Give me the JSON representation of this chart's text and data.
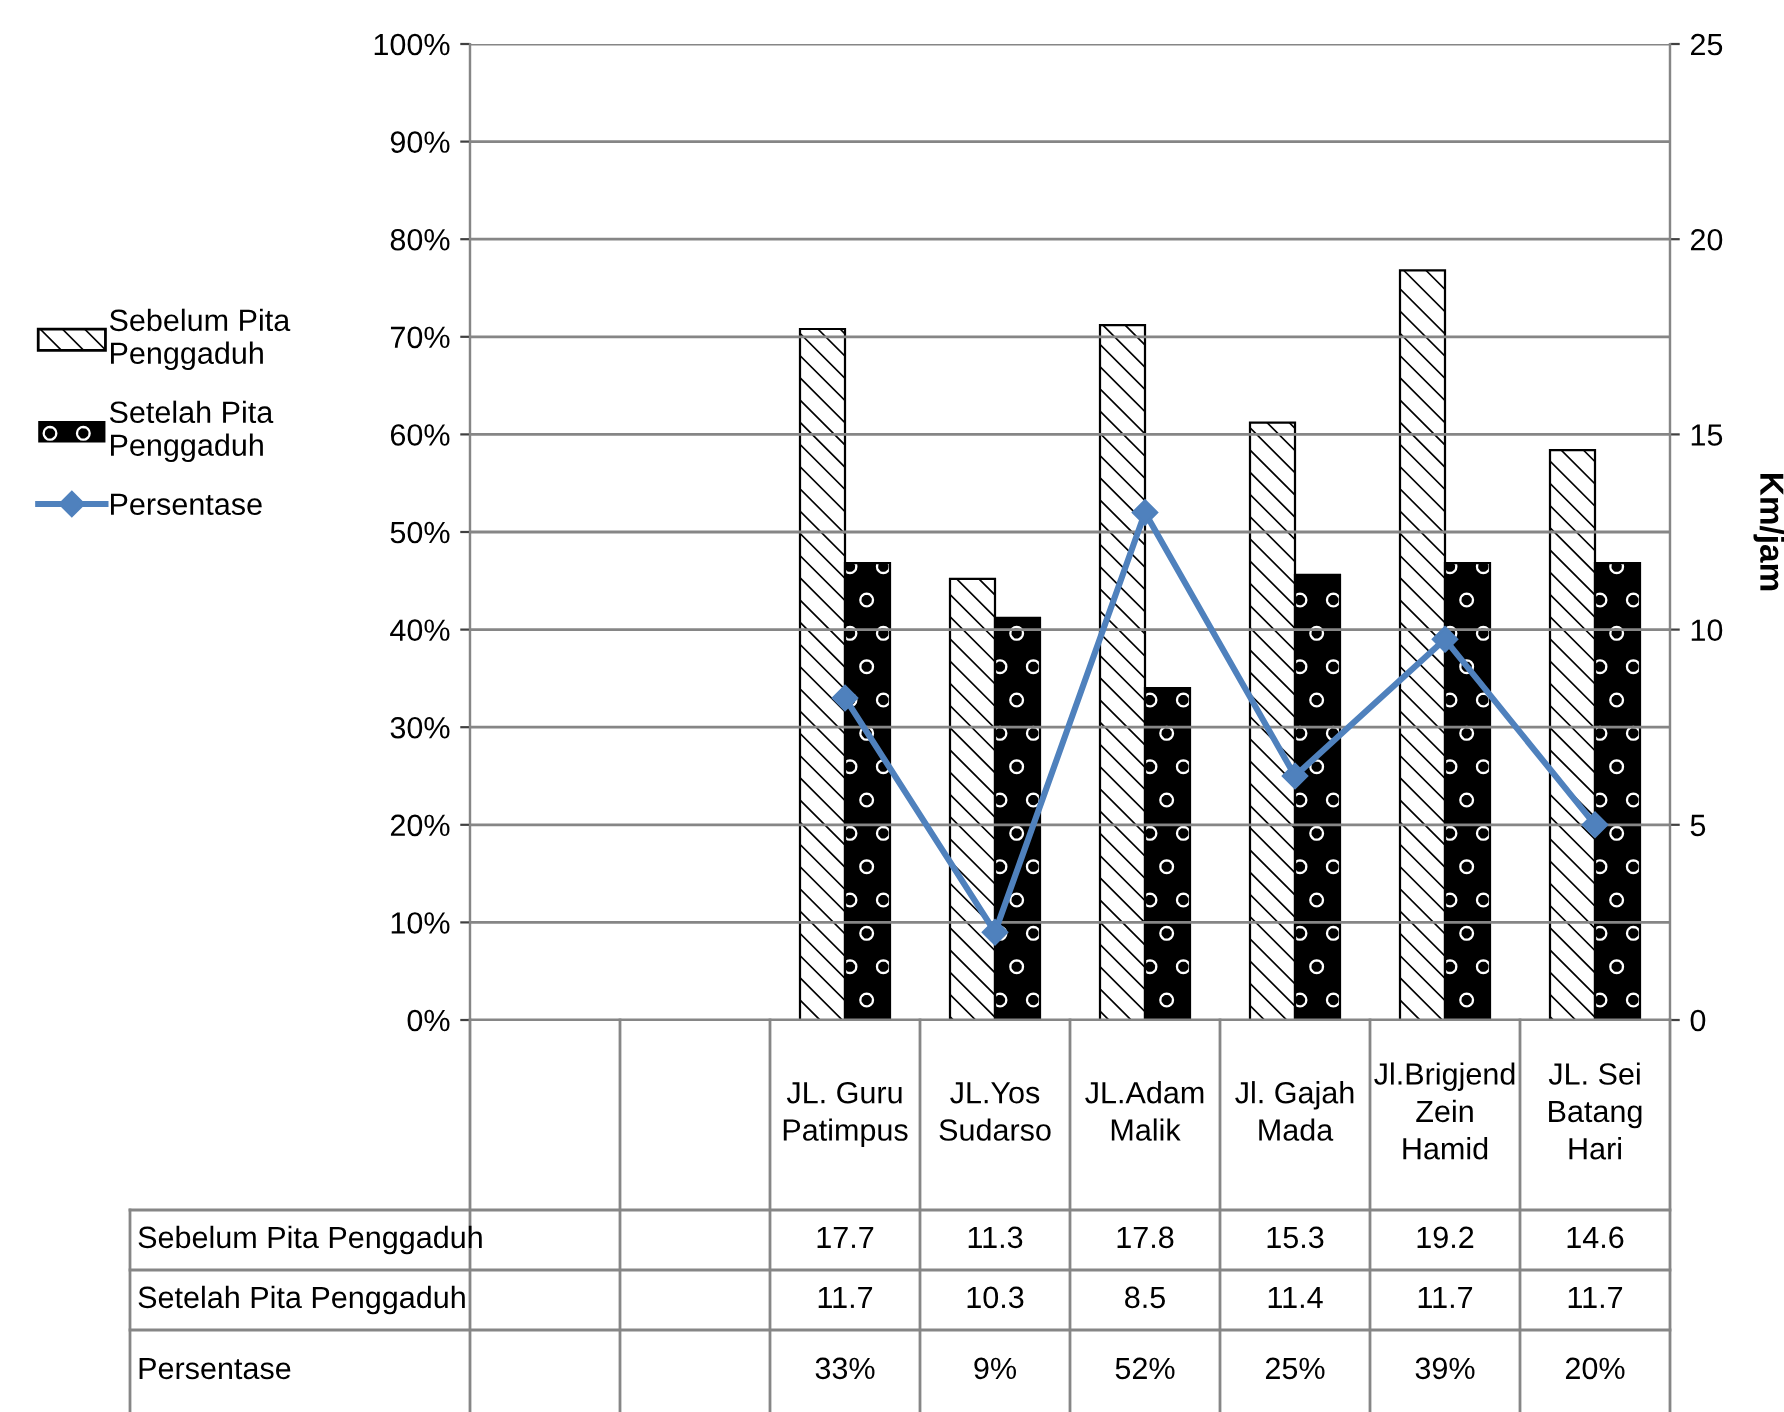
{
  "chart_data": {
    "type": "bar",
    "y2label": "Km/jam",
    "categories": [
      null,
      null,
      "JL. Guru Patimpus",
      "JL.Yos Sudarso",
      "JL.Adam Malik",
      "Jl. Gajah Mada",
      "Jl.Brigjend Zein Hamid",
      "JL. Sei Batang Hari"
    ],
    "series": [
      {
        "name": "Sebelum Pita Penggaduh",
        "axis": "y2",
        "color": "#ffffff",
        "values": [
          null,
          null,
          17.7,
          11.3,
          17.8,
          15.3,
          19.2,
          14.6
        ],
        "value_labels": [
          null,
          null,
          "17.7",
          "11.3",
          "17.8",
          "15.3",
          "19.2",
          "14.6"
        ]
      },
      {
        "name": "Setelah Pita Penggaduh",
        "axis": "y2",
        "color": "#000000",
        "values": [
          null,
          null,
          11.7,
          10.3,
          8.5,
          11.4,
          11.7,
          11.7
        ],
        "value_labels": [
          null,
          null,
          "11.7",
          "10.3",
          "8.5",
          "11.4",
          "11.7",
          "11.7"
        ]
      },
      {
        "name": "Persentase",
        "type": "line",
        "axis": "y",
        "color": "#4f81bd",
        "marker": "diamond",
        "values": [
          null,
          null,
          33,
          9,
          52,
          25,
          39,
          20
        ],
        "value_labels": [
          null,
          null,
          "33%",
          "9%",
          "52%",
          "25%",
          "39%",
          "20%"
        ]
      }
    ],
    "ylim": [
      0,
      100
    ],
    "yticks": [
      {
        "value": 0,
        "label": "0%"
      },
      {
        "value": 10,
        "label": "10%"
      },
      {
        "value": 20,
        "label": "20%"
      },
      {
        "value": 30,
        "label": "30%"
      },
      {
        "value": 40,
        "label": "40%"
      },
      {
        "value": 50,
        "label": "50%"
      },
      {
        "value": 60,
        "label": "60%"
      },
      {
        "value": 70,
        "label": "70%"
      },
      {
        "value": 80,
        "label": "80%"
      },
      {
        "value": 90,
        "label": "90%"
      },
      {
        "value": 100,
        "label": "100%"
      }
    ],
    "y2lim": [
      0,
      25
    ],
    "y2ticks": [
      0,
      5,
      10,
      15,
      20,
      25
    ],
    "grid": "y",
    "legend": "left"
  }
}
